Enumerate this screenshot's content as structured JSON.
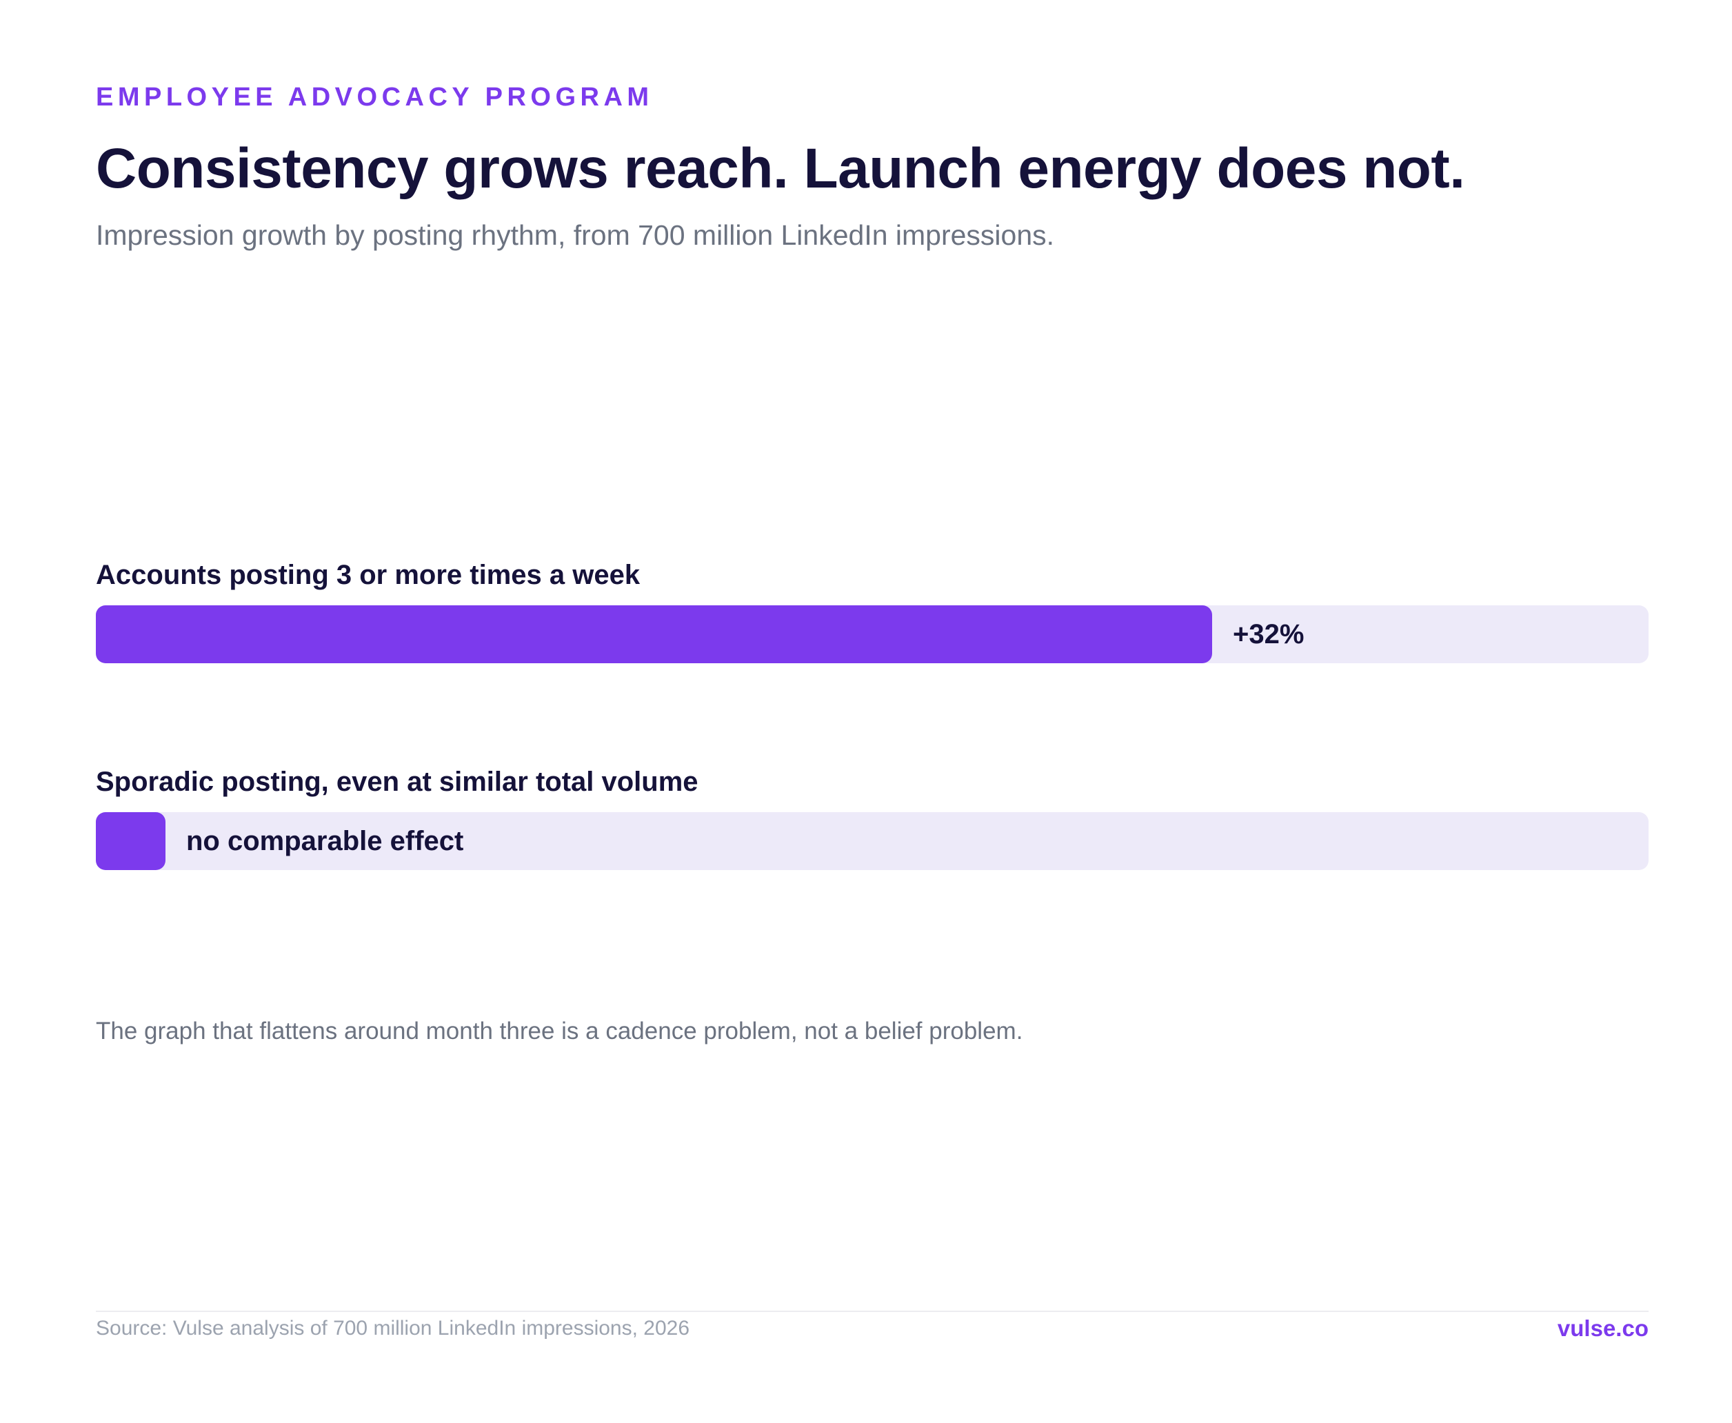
{
  "header": {
    "eyebrow": "EMPLOYEE ADVOCACY PROGRAM",
    "title": "Consistency grows reach. Launch energy does not.",
    "subtitle": "Impression growth by posting rhythm, from 700 million LinkedIn impressions."
  },
  "colors": {
    "accent": "#7c3aed",
    "track": "#edeaf9",
    "text_dark": "#15123a",
    "text_muted": "#6b7280"
  },
  "chart_data": {
    "type": "bar",
    "orientation": "horizontal",
    "categories": [
      "Accounts posting 3 or more times a week",
      "Sporadic posting, even at similar total volume"
    ],
    "values": [
      32,
      2
    ],
    "value_labels": [
      "+32%",
      "no comparable effect"
    ],
    "unit": "%",
    "xlim": [
      0,
      44.5
    ],
    "grid": false,
    "legend": "none"
  },
  "footer": {
    "note": "The graph that flattens around month three is a cadence problem, not a belief problem.",
    "source": "Source: Vulse analysis of 700 million LinkedIn impressions, 2026",
    "brand": "vulse.co"
  }
}
